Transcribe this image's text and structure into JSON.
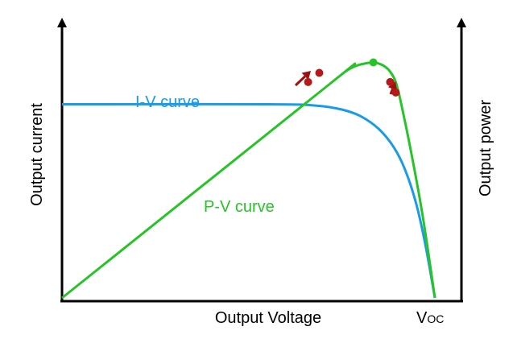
{
  "chart_data": {
    "type": "line",
    "title": "",
    "xlabel": "Output Voltage",
    "ylabel_left": "Output current",
    "ylabel_right": "Output power",
    "x_tick_labels": [
      {
        "main": "V",
        "sub": "OC",
        "x": 1.0
      }
    ],
    "xlim": [
      0,
      1
    ],
    "ylim": [
      0,
      1
    ],
    "series": [
      {
        "name": "I-V curve",
        "color": "#1a9be6",
        "x": [
          0,
          0.55,
          0.68,
          0.75,
          0.8,
          0.85,
          0.89,
          0.92,
          0.95,
          0.975,
          1.0
        ],
        "y": [
          0.74,
          0.74,
          0.735,
          0.72,
          0.695,
          0.645,
          0.575,
          0.49,
          0.36,
          0.2,
          0.0
        ]
      },
      {
        "name": "P-V curve",
        "color": "#27c427",
        "x": [
          0,
          0.72,
          0.76,
          0.785,
          0.81,
          0.835,
          0.85,
          0.865,
          0.88,
          0.895,
          0.91,
          0.94,
          0.97,
          1.0
        ],
        "y": [
          0,
          0.82,
          0.865,
          0.885,
          0.895,
          0.9,
          0.895,
          0.885,
          0.865,
          0.825,
          0.74,
          0.53,
          0.29,
          0.0
        ]
      }
    ],
    "annotations": {
      "maximum_power_point": {
        "x": 0.835,
        "y": 0.9,
        "color": "#27c427"
      },
      "operating_points": [
        {
          "x": 0.66,
          "y": 0.825
        },
        {
          "x": 0.69,
          "y": 0.86
        },
        {
          "x": 0.88,
          "y": 0.825
        },
        {
          "x": 0.895,
          "y": 0.785
        }
      ],
      "operating_point_color": "#b51a1a",
      "arrow_color": "#a01010"
    },
    "grid": false,
    "legend": "none"
  }
}
